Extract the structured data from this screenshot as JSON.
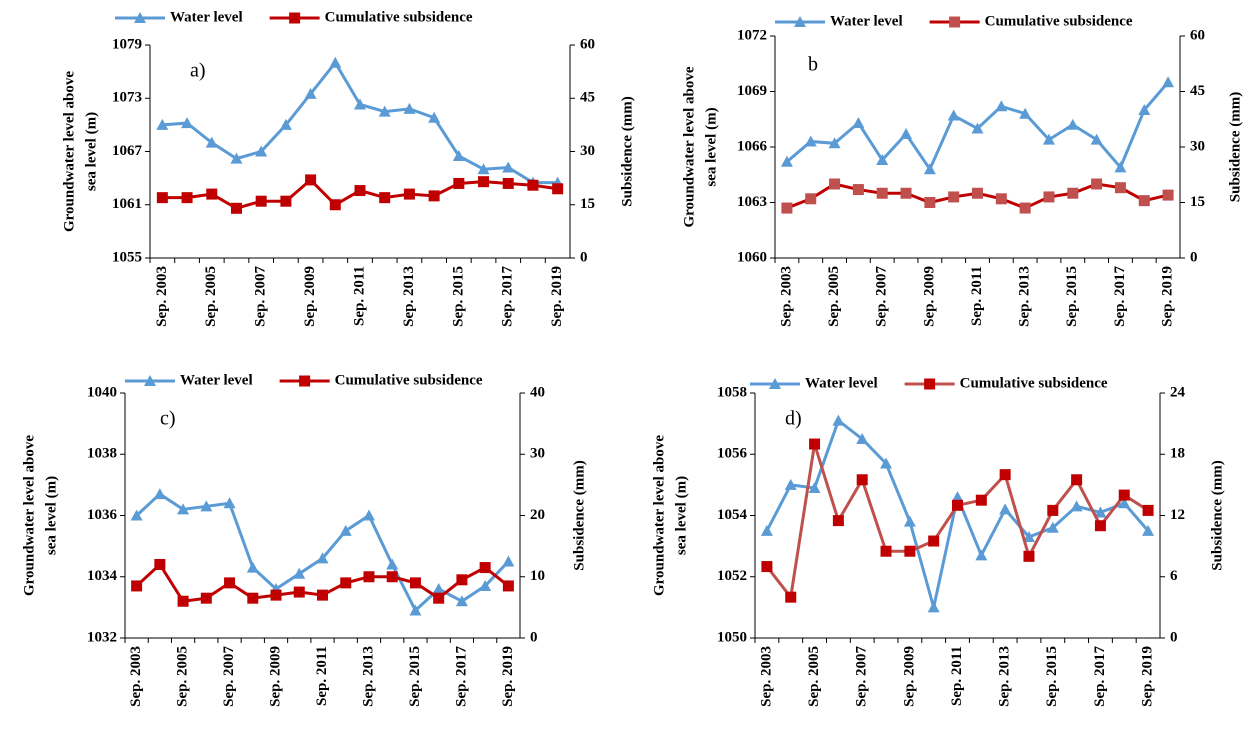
{
  "chart_data": [
    {
      "type": "line",
      "panel_label": "a)",
      "categories": [
        "Sep. 2003",
        null,
        "Sep. 2005",
        null,
        "Sep. 2007",
        null,
        "Sep. 2009",
        null,
        "Sep. 2011",
        null,
        "Sep. 2013",
        null,
        "Sep. 2015",
        null,
        "Sep. 2017",
        null,
        "Sep. 2019"
      ],
      "ylabel": [
        "Groundwater level above",
        "sea level (m)"
      ],
      "y2label": "Subsidence (mm)",
      "ylim": [
        1055,
        1079
      ],
      "yticks": [
        1055,
        1061,
        1067,
        1073,
        1079
      ],
      "y2lim": [
        0,
        60
      ],
      "y2ticks": [
        0,
        15,
        30,
        45,
        60
      ],
      "series": [
        {
          "name": "Water level",
          "color": "#5b9bd5",
          "marker_color": "#5b9bd5",
          "marker": "triangle",
          "values": [
            1070,
            1070.2,
            1068,
            1066.2,
            1067,
            1070,
            1073.5,
            1077,
            1072.3,
            1071.5,
            1071.8,
            1070.8,
            1066.5,
            1065,
            1065.2,
            1063.5,
            1063.5
          ]
        },
        {
          "name": "Cumulative subsidence",
          "color": "#c00000",
          "marker_color": "#c00000",
          "marker": "square",
          "axis": "y2",
          "values": [
            17,
            17,
            18,
            14,
            16,
            16,
            22,
            15,
            19,
            17,
            18,
            17.5,
            21,
            21.5,
            21,
            20.5,
            19.5
          ]
        }
      ]
    },
    {
      "type": "line",
      "panel_label": "b",
      "categories": [
        "Sep. 2003",
        null,
        "Sep. 2005",
        null,
        "Sep. 2007",
        null,
        "Sep. 2009",
        null,
        "Sep. 2011",
        null,
        "Sep. 2013",
        null,
        "Sep. 2015",
        null,
        "Sep. 2017",
        null,
        "Sep. 2019"
      ],
      "ylabel": [
        "Groundwater level above",
        "sea level (m)"
      ],
      "y2label": "Subsidence (mm)",
      "ylim": [
        1060,
        1072
      ],
      "yticks": [
        1060,
        1063,
        1066,
        1069,
        1072
      ],
      "y2lim": [
        0,
        60
      ],
      "y2ticks": [
        0,
        15,
        30,
        45,
        60
      ],
      "series": [
        {
          "name": "Water level",
          "color": "#5b9bd5",
          "marker_color": "#5b9bd5",
          "marker": "triangle",
          "values": [
            1065.2,
            1066.3,
            1066.2,
            1067.3,
            1065.3,
            1066.7,
            1064.8,
            1067.7,
            1067,
            1068.2,
            1067.8,
            1066.4,
            1067.2,
            1066.4,
            1064.9,
            1068,
            1069.5
          ]
        },
        {
          "name": "Cumulative subsidence",
          "color": "#c00000",
          "marker_color": "#c0504d",
          "marker": "square",
          "axis": "y2",
          "values": [
            13.5,
            16,
            20,
            18.5,
            17.5,
            17.5,
            15,
            16.5,
            17.5,
            16,
            13.5,
            16.5,
            17.5,
            20,
            19,
            15.5,
            17
          ]
        }
      ]
    },
    {
      "type": "line",
      "panel_label": "c)",
      "categories": [
        "Sep. 2003",
        null,
        "Sep. 2005",
        null,
        "Sep. 2007",
        null,
        "Sep. 2009",
        null,
        "Sep. 2011",
        null,
        "Sep. 2013",
        null,
        "Sep. 2015",
        null,
        "Sep. 2017",
        null,
        "Sep. 2019"
      ],
      "ylabel": [
        "Groundwater level above",
        "sea level (m)"
      ],
      "y2label": "Subsidence (mm)",
      "ylim": [
        1032,
        1040
      ],
      "yticks": [
        1032,
        1034,
        1036,
        1038,
        1040
      ],
      "y2lim": [
        0,
        40
      ],
      "y2ticks": [
        0,
        10,
        20,
        30,
        40
      ],
      "series": [
        {
          "name": "Water level",
          "color": "#5b9bd5",
          "marker_color": "#5b9bd5",
          "marker": "triangle",
          "values": [
            1036,
            1036.7,
            1036.2,
            1036.3,
            1036.4,
            1034.3,
            1033.6,
            1034.1,
            1034.6,
            1035.5,
            1036,
            1034.4,
            1032.9,
            1033.6,
            1033.2,
            1033.7,
            1034.5
          ]
        },
        {
          "name": "Cumulative subsidence",
          "color": "#c00000",
          "marker_color": "#c00000",
          "marker": "square",
          "axis": "y2",
          "values": [
            8.5,
            12,
            6,
            6.5,
            9,
            6.5,
            7,
            7.5,
            7,
            9,
            10,
            10,
            9,
            6.5,
            9.5,
            11.5,
            8.5
          ]
        }
      ]
    },
    {
      "type": "line",
      "panel_label": "d)",
      "categories": [
        "Sep. 2003",
        null,
        "Sep. 2005",
        null,
        "Sep. 2007",
        null,
        "Sep. 2009",
        null,
        "Sep. 2011",
        null,
        "Sep. 2013",
        null,
        "Sep. 2015",
        null,
        "Sep. 2017",
        null,
        "Sep. 2019"
      ],
      "ylabel": [
        "Groundwater level above",
        "sea level (m)"
      ],
      "y2label": "Subsidence (mm)",
      "ylim": [
        1050,
        1058
      ],
      "yticks": [
        1050,
        1052,
        1054,
        1056,
        1058
      ],
      "y2lim": [
        0,
        24
      ],
      "y2ticks": [
        0,
        6,
        12,
        18,
        24
      ],
      "series": [
        {
          "name": "Water level",
          "color": "#5b9bd5",
          "marker_color": "#5b9bd5",
          "marker": "triangle",
          "values": [
            1053.5,
            1055,
            1054.9,
            1057.1,
            1056.5,
            1055.7,
            1053.8,
            1051,
            1054.6,
            1052.7,
            1054.2,
            1053.3,
            1053.6,
            1054.3,
            1054.1,
            1054.4,
            1053.5
          ]
        },
        {
          "name": "Cumulative subsidence",
          "color": "#c0504d",
          "marker_color": "#c00000",
          "marker": "square",
          "axis": "y2",
          "values": [
            7,
            4,
            19,
            11.5,
            15.5,
            8.5,
            8.5,
            9.5,
            13,
            13.5,
            16,
            8,
            12.5,
            15.5,
            11,
            14,
            12.5
          ]
        }
      ]
    }
  ]
}
